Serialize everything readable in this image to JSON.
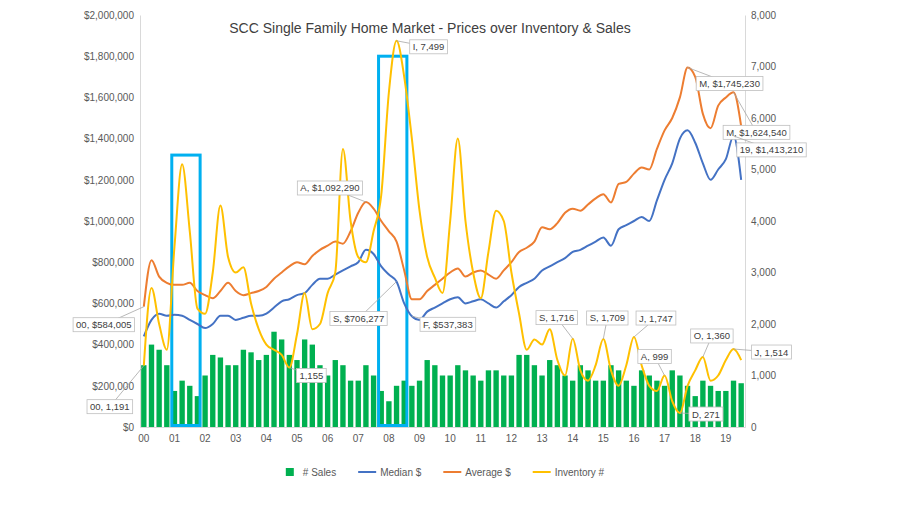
{
  "chart_data": {
    "type": "combo",
    "title": "SCC Single Family Home Market - Prices over Inventory & Sales",
    "categories": [
      "00",
      null,
      null,
      null,
      "01",
      null,
      null,
      null,
      "02",
      null,
      null,
      null,
      "03",
      null,
      null,
      null,
      "04",
      null,
      null,
      null,
      "05",
      null,
      null,
      null,
      "06",
      null,
      null,
      null,
      "07",
      null,
      null,
      null,
      "08",
      null,
      null,
      null,
      "09",
      null,
      null,
      null,
      "10",
      null,
      null,
      null,
      "11",
      null,
      null,
      null,
      "12",
      null,
      null,
      null,
      "13",
      null,
      null,
      null,
      "14",
      null,
      null,
      null,
      "15",
      null,
      null,
      null,
      "16",
      null,
      null,
      null,
      "17",
      null,
      null,
      null,
      "18",
      null,
      null,
      null,
      "19",
      null,
      null
    ],
    "series": [
      {
        "name": "# Sales",
        "type": "bar",
        "color": "#00b050",
        "axis": "y2",
        "values": [
          1200,
          1600,
          1500,
          1200,
          700,
          900,
          800,
          600,
          1000,
          1400,
          1350,
          1200,
          1200,
          1500,
          1450,
          1300,
          1400,
          1850,
          1700,
          1400,
          1300,
          1700,
          1600,
          1200,
          1000,
          1300,
          1200,
          900,
          900,
          1200,
          1000,
          700,
          500,
          800,
          900,
          800,
          900,
          1300,
          1200,
          1000,
          1000,
          1200,
          1100,
          1000,
          900,
          1100,
          1100,
          1000,
          1000,
          1400,
          1400,
          1200,
          1000,
          1300,
          1200,
          1000,
          900,
          1200,
          1100,
          900,
          900,
          1200,
          1100,
          900,
          800,
          1100,
          1000,
          900,
          800,
          1100,
          1000,
          800,
          600,
          900,
          800,
          700,
          700,
          900,
          850
        ]
      },
      {
        "name": "Median $",
        "type": "line",
        "color": "#4472c4",
        "values": [
          440000,
          520000,
          550000,
          540000,
          545000,
          540000,
          520000,
          500000,
          480000,
          500000,
          540000,
          540000,
          520000,
          530000,
          540000,
          540000,
          550000,
          580000,
          610000,
          620000,
          640000,
          650000,
          690000,
          720000,
          720000,
          740000,
          760000,
          780000,
          800000,
          860000,
          840000,
          780000,
          740000,
          706277,
          600000,
          537383,
          520000,
          560000,
          580000,
          600000,
          620000,
          630000,
          600000,
          610000,
          620000,
          600000,
          580000,
          610000,
          640000,
          680000,
          700000,
          720000,
          760000,
          780000,
          800000,
          820000,
          850000,
          860000,
          880000,
          900000,
          920000,
          880000,
          960000,
          980000,
          1000000,
          1020000,
          1000000,
          1100000,
          1200000,
          1280000,
          1400000,
          1440000,
          1380000,
          1280000,
          1200000,
          1250000,
          1300000,
          1413210,
          1200000
        ]
      },
      {
        "name": "Average $",
        "type": "line",
        "color": "#ed7d31",
        "values": [
          584005,
          810000,
          730000,
          700000,
          690000,
          690000,
          700000,
          660000,
          640000,
          625000,
          660000,
          700000,
          660000,
          640000,
          650000,
          660000,
          680000,
          720000,
          750000,
          780000,
          800000,
          790000,
          830000,
          860000,
          880000,
          900000,
          890000,
          950000,
          1040000,
          1092290,
          1060000,
          1000000,
          950000,
          900000,
          760000,
          620000,
          620000,
          660000,
          690000,
          720000,
          750000,
          770000,
          730000,
          750000,
          760000,
          740000,
          720000,
          760000,
          800000,
          850000,
          870000,
          900000,
          970000,
          960000,
          990000,
          1040000,
          1060000,
          1050000,
          1080000,
          1110000,
          1130000,
          1090000,
          1180000,
          1190000,
          1230000,
          1260000,
          1250000,
          1350000,
          1440000,
          1500000,
          1600000,
          1745230,
          1700000,
          1520000,
          1450000,
          1560000,
          1600000,
          1624540,
          1460000
        ]
      },
      {
        "name": "Inventory #",
        "type": "line",
        "color": "#ffc000",
        "axis": "y2",
        "values": [
          1191,
          2700,
          2000,
          1500,
          3500,
          5100,
          3800,
          2300,
          2200,
          3000,
          4300,
          3300,
          3000,
          3100,
          2400,
          1900,
          1600,
          1500,
          1400,
          1155,
          1800,
          2600,
          1900,
          2000,
          2600,
          3000,
          5400,
          4000,
          3300,
          3200,
          3800,
          4500,
          6500,
          7499,
          6800,
          5600,
          4200,
          3300,
          2900,
          2600,
          4000,
          5600,
          4000,
          3000,
          2500,
          3400,
          4200,
          4000,
          3000,
          2200,
          1500,
          1700,
          1600,
          1900,
          1300,
          1000,
          1716,
          1100,
          900,
          1200,
          1709,
          1100,
          800,
          1200,
          1747,
          1200,
          800,
          700,
          999,
          500,
          271,
          800,
          1100,
          1360,
          900,
          1000,
          1300,
          1514,
          1300
        ]
      }
    ],
    "ylim": [
      0,
      2000000
    ],
    "yticks": [
      {
        "value": 0,
        "label": "$0"
      },
      {
        "value": 200000,
        "label": "$200,000"
      },
      {
        "value": 400000,
        "label": "$400,000"
      },
      {
        "value": 600000,
        "label": "$600,000"
      },
      {
        "value": 800000,
        "label": "$800,000"
      },
      {
        "value": 1000000,
        "label": "$1,000,000"
      },
      {
        "value": 1200000,
        "label": "$1,200,000"
      },
      {
        "value": 1400000,
        "label": "$1,400,000"
      },
      {
        "value": 1600000,
        "label": "$1,600,000"
      },
      {
        "value": 1800000,
        "label": "$1,800,000"
      },
      {
        "value": 2000000,
        "label": "$2,000,000"
      }
    ],
    "y2lim": [
      0,
      8000
    ],
    "y2ticks": [
      0,
      {
        "value": 1000,
        "label": "1,000"
      },
      {
        "value": 2000,
        "label": "2,000"
      },
      {
        "value": 3000,
        "label": "3,000"
      },
      {
        "value": 4000,
        "label": "4,000"
      },
      {
        "value": 5000,
        "label": "5,000"
      },
      {
        "value": 6000,
        "label": "6,000"
      },
      {
        "value": 7000,
        "label": "7,000"
      },
      {
        "value": 8000,
        "label": "8,000"
      }
    ],
    "grid": false,
    "legend": "bottom",
    "annotations": [
      {
        "text": "00, $584,005",
        "series": "Average $",
        "index": 0
      },
      {
        "text": "00, 1,191",
        "series": "Inventory #",
        "index": 0
      },
      {
        "text": "1,155",
        "series": "Inventory #",
        "index": 19
      },
      {
        "text": "A, $1,092,290",
        "series": "Average $",
        "index": 29
      },
      {
        "text": "S, $706,277",
        "series": "Median $",
        "index": 33
      },
      {
        "text": "I, 7,499",
        "series": "Inventory #",
        "index": 33
      },
      {
        "text": "F, $537,383",
        "series": "Median $",
        "index": 35
      },
      {
        "text": "S, 1,716",
        "series": "Inventory #",
        "index": 56
      },
      {
        "text": "S, 1,709",
        "series": "Inventory #",
        "index": 60
      },
      {
        "text": "J, 1,747",
        "series": "Inventory #",
        "index": 64
      },
      {
        "text": "A, 999",
        "series": "Inventory #",
        "index": 68
      },
      {
        "text": "D, 271",
        "series": "Inventory #",
        "index": 70
      },
      {
        "text": "O, 1,360",
        "series": "Inventory #",
        "index": 73
      },
      {
        "text": "J, 1,514",
        "series": "Inventory #",
        "index": 77
      },
      {
        "text": "M, $1,745,230",
        "series": "Average $",
        "index": 71
      },
      {
        "text": "M, $1,624,540",
        "series": "Average $",
        "index": 77
      },
      {
        "text": "19, $1,413,210",
        "series": "Median $",
        "index": 77
      }
    ],
    "highlights": [
      {
        "from": 4,
        "to": 7,
        "top": 1320000
      },
      {
        "from": 31,
        "to": 34,
        "top": 1800000
      }
    ]
  }
}
